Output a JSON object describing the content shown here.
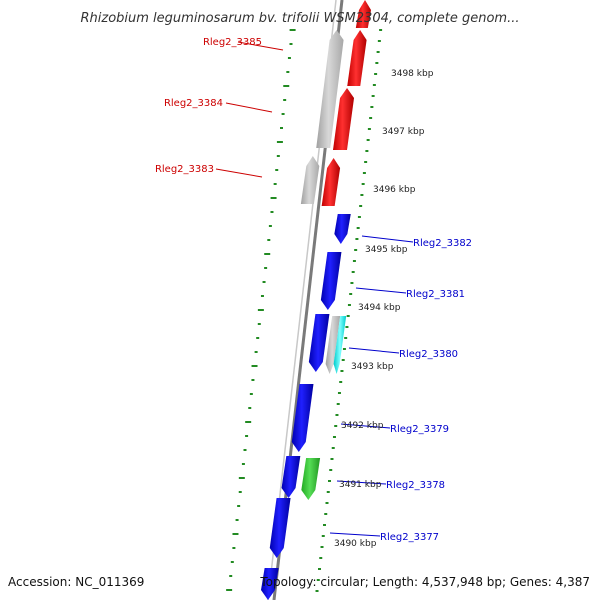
{
  "title": "Rhizobium leguminosarum bv. trifolii WSM2304, complete genom...",
  "accession": "Accession: NC_011369",
  "summary": "Topology: circular; Length: 4,537,948 bp; Genes: 4,387",
  "colors": {
    "forward_gene": "#ff0000",
    "reverse_gene": "#0000ff",
    "gray_feature": "#bfbfbf",
    "green_feature": "#33cc33",
    "cyan_feature": "#00ffff",
    "tick": "#228b22",
    "backbone": "#808080"
  },
  "ticks": [
    {
      "label": "3498 kbp"
    },
    {
      "label": "3497 kbp"
    },
    {
      "label": "3496 kbp"
    },
    {
      "label": "3495 kbp"
    },
    {
      "label": "3494 kbp"
    },
    {
      "label": "3493 kbp"
    },
    {
      "label": "3492 kbp"
    },
    {
      "label": "3491 kbp"
    },
    {
      "label": "3490 kbp"
    }
  ],
  "gene_labels": [
    {
      "name": "Rleg2_3385",
      "strand": "forward"
    },
    {
      "name": "Rleg2_3384",
      "strand": "forward"
    },
    {
      "name": "Rleg2_3383",
      "strand": "forward"
    },
    {
      "name": "Rleg2_3382",
      "strand": "reverse"
    },
    {
      "name": "Rleg2_3381",
      "strand": "reverse"
    },
    {
      "name": "Rleg2_3380",
      "strand": "reverse"
    },
    {
      "name": "Rleg2_3379",
      "strand": "reverse"
    },
    {
      "name": "Rleg2_3378",
      "strand": "reverse"
    },
    {
      "name": "Rleg2_3377",
      "strand": "reverse"
    }
  ]
}
